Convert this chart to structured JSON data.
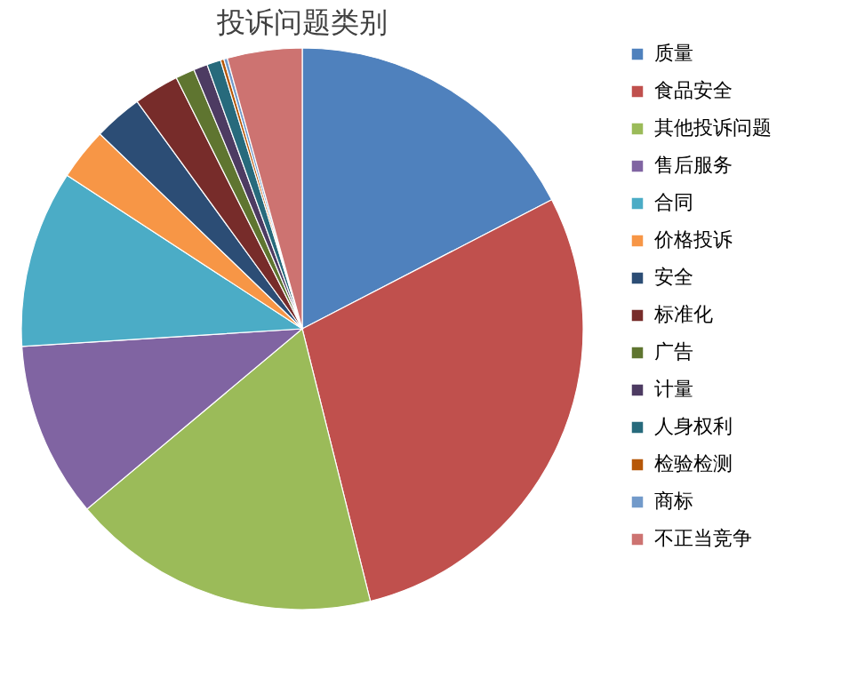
{
  "chart_data": {
    "type": "pie",
    "title": "投诉问题类别",
    "categories": [
      "质量",
      "食品安全",
      "其他投诉问题",
      "售后服务",
      "合同",
      "价格投诉",
      "安全",
      "标准化",
      "广告",
      "计量",
      "人身权利",
      "检验检测",
      "商标",
      "不正当竞争"
    ],
    "values": [
      17.4,
      28.7,
      17.8,
      10.1,
      10.2,
      3.0,
      2.8,
      2.6,
      1.1,
      0.8,
      0.8,
      0.2,
      0.2,
      4.3
    ],
    "colors": [
      "#4f81bd",
      "#c0504d",
      "#9bbb59",
      "#8064a2",
      "#4bacc6",
      "#f79646",
      "#2c4d75",
      "#772c2a",
      "#5f7530",
      "#4d3b62",
      "#276a7c",
      "#b65708",
      "#729aca",
      "#cd7371"
    ],
    "legend": "right"
  }
}
